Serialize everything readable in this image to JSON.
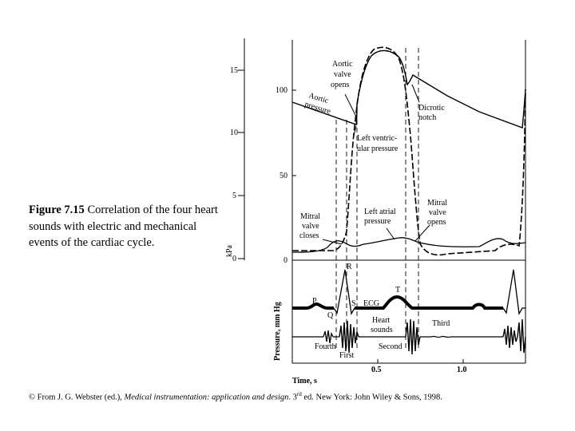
{
  "caption": {
    "figure_label": "Figure 7.15",
    "text": " Correlation of the four heart sounds with electric and mechanical events of the cardiac cycle."
  },
  "credit": {
    "prefix": "© From J. G. Webster (ed.), ",
    "title": "Medical instrumentation: application and design",
    "edition_num": ". 3",
    "edition_sup": "rd",
    "suffix": " ed. New York: John Wiley & Sons, 1998."
  },
  "axes": {
    "kpa_label": "kPa",
    "kpa_ticks": [
      "15",
      "10",
      "5",
      "0"
    ],
    "mmhg_label": "Pressure, mm Hg",
    "mmhg_ticks": [
      "100",
      "50",
      "0"
    ],
    "time_label": "Time, s",
    "time_ticks": [
      "0.5",
      "1.0"
    ]
  },
  "annotations": {
    "aortic_valve_opens": [
      "Aortic",
      "valve",
      "opens"
    ],
    "aortic_pressure": [
      "Aortic",
      "pressure"
    ],
    "dicrotic_notch": [
      "Dicrotic",
      "notch"
    ],
    "left_ventricular_pressure": [
      "Left ventric-",
      "ular pressure"
    ],
    "mitral_valve_closes": [
      "Mitral",
      "valve",
      "closes"
    ],
    "left_atrial_pressure": [
      "Left atrial",
      "pressure"
    ],
    "mitral_valve_opens": [
      "Mitral",
      "valve",
      "opens"
    ]
  },
  "ecg_labels": {
    "p": "P",
    "q": "Q",
    "r": "R",
    "s": "S",
    "t": "T",
    "ecg": "ECG"
  },
  "heart_sound_labels": {
    "heart_sounds": [
      "Heart",
      "sounds"
    ],
    "fourth": "Fourth",
    "first": "First",
    "second": "Second",
    "third": "Third"
  }
}
